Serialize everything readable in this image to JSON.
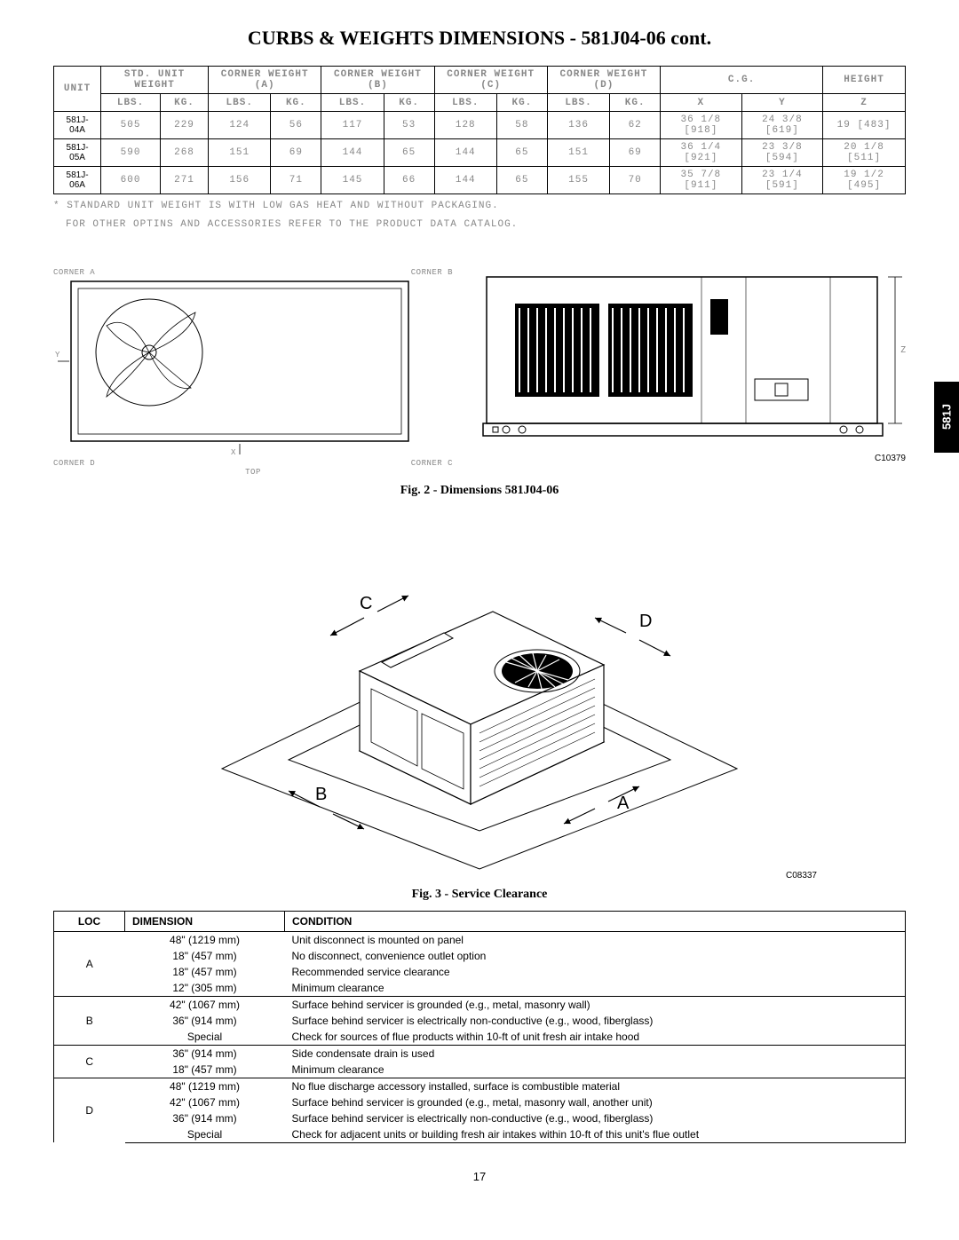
{
  "page": {
    "title": "CURBS & WEIGHTS DIMENSIONS - 581J04-06 cont.",
    "side_tab": "581J",
    "page_number": "17"
  },
  "weights_table": {
    "header_top": {
      "unit": "UNIT",
      "std": "STD. UNIT WEIGHT",
      "ca": "CORNER WEIGHT (A)",
      "cb": "CORNER WEIGHT (B)",
      "cc": "CORNER WEIGHT (C)",
      "cd": "CORNER WEIGHT (D)",
      "cg": "C.G.",
      "height": "HEIGHT"
    },
    "header_units": {
      "lbs": "LBS.",
      "kg": "KG.",
      "x": "X",
      "y": "Y",
      "z": "Z"
    },
    "rows": [
      {
        "unit": "581J-04A",
        "std_lbs": "505",
        "std_kg": "229",
        "a_lbs": "124",
        "a_kg": "56",
        "b_lbs": "117",
        "b_kg": "53",
        "c_lbs": "128",
        "c_kg": "58",
        "d_lbs": "136",
        "d_kg": "62",
        "x": "36 1/8 [918]",
        "y": "24 3/8 [619]",
        "z": "19 [483]"
      },
      {
        "unit": "581J-05A",
        "std_lbs": "590",
        "std_kg": "268",
        "a_lbs": "151",
        "a_kg": "69",
        "b_lbs": "144",
        "b_kg": "65",
        "c_lbs": "144",
        "c_kg": "65",
        "d_lbs": "151",
        "d_kg": "69",
        "x": "36 1/4 [921]",
        "y": "23 3/8 [594]",
        "z": "20 1/8 [511]"
      },
      {
        "unit": "581J-06A",
        "std_lbs": "600",
        "std_kg": "271",
        "a_lbs": "156",
        "a_kg": "71",
        "b_lbs": "145",
        "b_kg": "66",
        "c_lbs": "144",
        "c_kg": "65",
        "d_lbs": "155",
        "d_kg": "70",
        "x": "35 7/8 [911]",
        "y": "23 1/4 [591]",
        "z": "19 1/2 [495]"
      }
    ],
    "footnote1": "* STANDARD UNIT WEIGHT IS WITH LOW GAS HEAT AND WITHOUT PACKAGING.",
    "footnote2": "FOR OTHER OPTINS AND ACCESSORIES REFER TO THE PRODUCT DATA CATALOG."
  },
  "fig2": {
    "caption": "Fig. 2 - Dimensions 581J04-06",
    "c_label": "C10379",
    "corner_a": "CORNER A",
    "corner_b": "CORNER B",
    "corner_c": "CORNER C",
    "corner_d": "CORNER D",
    "top_label": "TOP",
    "z_label": "Z"
  },
  "fig3": {
    "caption": "Fig. 3 - Service Clearance",
    "c_label": "C08337",
    "letters": {
      "a": "A",
      "b": "B",
      "c": "C",
      "d": "D"
    }
  },
  "clearance_table": {
    "headers": {
      "loc": "LOC",
      "dim": "DIMENSION",
      "cond": "CONDITION"
    },
    "groups": [
      {
        "loc": "A",
        "rows": [
          {
            "dim": "48\" (1219 mm)",
            "cond": "Unit disconnect is mounted on panel"
          },
          {
            "dim": "18\" (457 mm)",
            "cond": "No disconnect, convenience outlet option"
          },
          {
            "dim": "18\" (457 mm)",
            "cond": "Recommended service clearance"
          },
          {
            "dim": "12\" (305 mm)",
            "cond": "Minimum clearance"
          }
        ]
      },
      {
        "loc": "B",
        "rows": [
          {
            "dim": "42\" (1067 mm)",
            "cond": "Surface behind servicer is grounded (e.g., metal, masonry wall)"
          },
          {
            "dim": "36\" (914 mm)",
            "cond": "Surface behind servicer is electrically non-conductive (e.g., wood, fiberglass)"
          },
          {
            "dim": "Special",
            "cond": "Check for sources of flue products within 10-ft of unit fresh air intake hood"
          }
        ]
      },
      {
        "loc": "C",
        "rows": [
          {
            "dim": "36\" (914 mm)",
            "cond": "Side condensate drain is used"
          },
          {
            "dim": "18\" (457 mm)",
            "cond": "Minimum clearance"
          }
        ]
      },
      {
        "loc": "D",
        "rows": [
          {
            "dim": "48\" (1219 mm)",
            "cond": "No flue discharge accessory installed, surface is combustible material"
          },
          {
            "dim": "42\" (1067 mm)",
            "cond": "Surface behind servicer is grounded (e.g., metal, masonry wall, another unit)"
          },
          {
            "dim": "36\" (914 mm)",
            "cond": "Surface behind servicer is electrically non-conductive (e.g., wood, fiberglass)"
          },
          {
            "dim": "Special",
            "cond": "Check for adjacent units or building fresh air intakes within 10-ft of this unit's flue outlet"
          }
        ]
      }
    ]
  }
}
